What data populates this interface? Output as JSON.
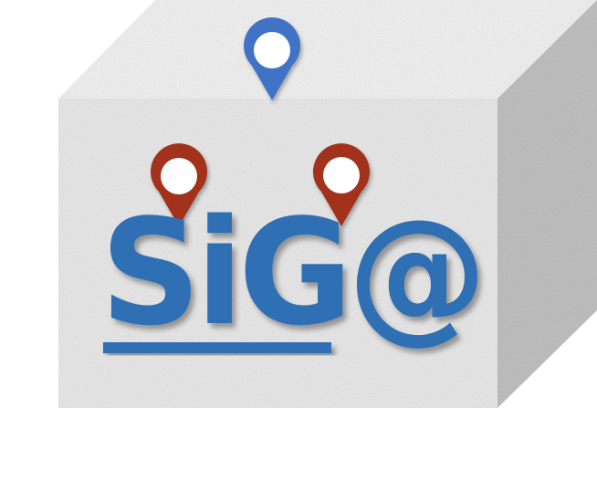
{
  "logo": {
    "text": "SiG@",
    "colors": {
      "text": "#2f6fb3",
      "underline": "#2f6fb3",
      "pin_blue": "#3f73c6",
      "pin_red": "#a2301a",
      "cube_front": "#e9e9e9",
      "cube_top": "#f1f1f1",
      "cube_side": "#b9b9b9"
    },
    "icons": [
      "map-pin-icon-blue",
      "map-pin-icon-red",
      "map-pin-icon-red"
    ]
  }
}
